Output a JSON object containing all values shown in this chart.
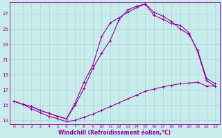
{
  "background_color": "#c8ecec",
  "line_color": "#990099",
  "grid_color": "#b0d8d8",
  "xlabel": "Windchill (Refroidissement éolien,°C)",
  "xlim": [
    -0.5,
    23.5
  ],
  "ylim": [
    12.5,
    28.5
  ],
  "yticks": [
    13,
    15,
    17,
    19,
    21,
    23,
    25,
    27
  ],
  "xticks": [
    0,
    1,
    2,
    3,
    4,
    5,
    6,
    7,
    8,
    9,
    10,
    11,
    12,
    13,
    14,
    15,
    16,
    17,
    18,
    19,
    20,
    21,
    22,
    23
  ],
  "line1_x": [
    0,
    1,
    2,
    3,
    4,
    5,
    6,
    7,
    8,
    9,
    10,
    11,
    12,
    13,
    14,
    15,
    16,
    17,
    18,
    19,
    20,
    21,
    22,
    23
  ],
  "line1_y": [
    15.5,
    15.1,
    14.5,
    14.0,
    13.5,
    13.2,
    12.8,
    13.0,
    13.4,
    13.8,
    14.3,
    14.8,
    15.3,
    15.8,
    16.3,
    16.8,
    17.1,
    17.4,
    17.6,
    17.8,
    17.9,
    18.0,
    17.5,
    17.5
  ],
  "line2_x": [
    0,
    1,
    2,
    3,
    4,
    5,
    6,
    7,
    8,
    9,
    10,
    11,
    12,
    13,
    14,
    15,
    16,
    17,
    18,
    19,
    20,
    21,
    22,
    23
  ],
  "line2_y": [
    15.5,
    15.1,
    14.8,
    14.3,
    13.9,
    13.5,
    13.2,
    15.3,
    18.0,
    20.2,
    24.0,
    25.8,
    26.5,
    27.2,
    27.8,
    28.3,
    26.8,
    26.3,
    25.7,
    25.5,
    24.5,
    22.0,
    18.2,
    17.5
  ],
  "line3_x": [
    0,
    1,
    2,
    3,
    4,
    5,
    6,
    7,
    8,
    9,
    10,
    11,
    12,
    13,
    14,
    15,
    16,
    17,
    18,
    19,
    20,
    21,
    22,
    23
  ],
  "line3_y": [
    15.5,
    15.1,
    14.8,
    14.3,
    13.9,
    13.5,
    13.2,
    15.0,
    17.2,
    19.8,
    21.8,
    23.5,
    26.2,
    27.5,
    28.0,
    28.3,
    27.2,
    26.7,
    26.0,
    25.0,
    24.3,
    22.2,
    18.5,
    17.8
  ],
  "marker": "+",
  "marker_size": 3,
  "linewidth": 0.8
}
